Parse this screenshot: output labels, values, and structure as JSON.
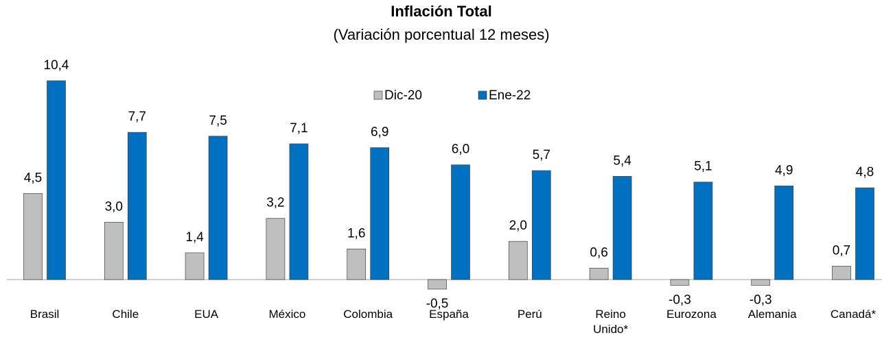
{
  "chart_data": {
    "type": "bar",
    "title": "Inflación Total",
    "subtitle": "(Variación porcentual 12 meses)",
    "categories": [
      "Brasil",
      "Chile",
      "EUA",
      "México",
      "Colombia",
      "España",
      "Perú",
      "Reino Unido*",
      "Eurozona",
      "Alemania",
      "Canadá*"
    ],
    "series": [
      {
        "name": "Dic-20",
        "color": "#bfbfbf",
        "values": [
          4.5,
          3.0,
          1.4,
          3.2,
          1.6,
          -0.5,
          2.0,
          0.6,
          -0.3,
          -0.3,
          0.7
        ],
        "value_labels": [
          "4,5",
          "3,0",
          "1,4",
          "3,2",
          "1,6",
          "-0,5",
          "2,0",
          "0,6",
          "-0,3",
          "-0,3",
          "0,7"
        ]
      },
      {
        "name": "Ene-22",
        "color": "#0070c0",
        "values": [
          10.4,
          7.7,
          7.5,
          7.1,
          6.9,
          6.0,
          5.7,
          5.4,
          5.1,
          4.9,
          4.8
        ],
        "value_labels": [
          "10,4",
          "7,7",
          "7,5",
          "7,1",
          "6,9",
          "6,0",
          "5,7",
          "5,4",
          "5,1",
          "4,9",
          "4,8"
        ]
      }
    ],
    "legend": "top"
  }
}
